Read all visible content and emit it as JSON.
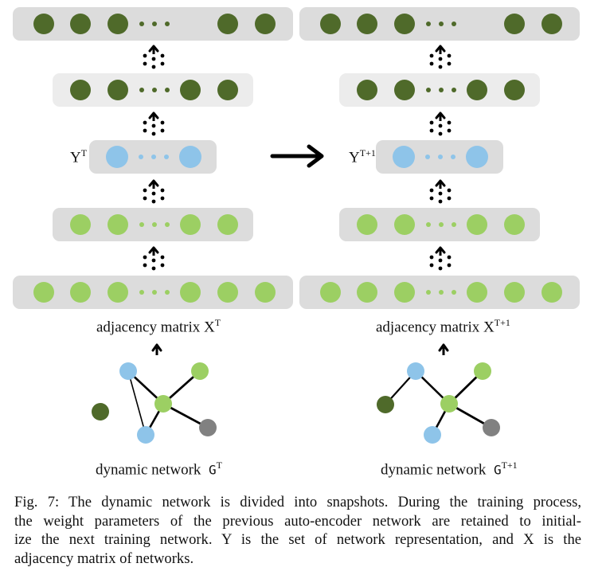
{
  "colors": {
    "dark_green": "#4f6a2a",
    "light_green": "#9ccf63",
    "blue": "#8ec4e9",
    "gray": "#818181",
    "panel_bg": "#dcdcdc",
    "panel_bg_light": "#ececec"
  },
  "left": {
    "y_label": "Y",
    "y_sup": "T",
    "x_label": "adjacency matrix X",
    "x_sup": "T",
    "g_label": "dynamic network",
    "g_symbol": "G",
    "g_sup": "T"
  },
  "right": {
    "y_label": "Y",
    "y_sup": "T+1",
    "x_label": "adjacency matrix X",
    "x_sup": "T+1",
    "g_label": "dynamic network",
    "g_symbol": "G",
    "g_sup": "T+1"
  },
  "caption": {
    "lines": [
      "Fig. 7: The dynamic network is divided into snapshots. During the training process,",
      "the weight parameters of the previous auto-encoder network are retained to initial-",
      "ize the next training network. Y is the set of network representation, and X is the",
      "adjacency matrix of networks."
    ]
  }
}
